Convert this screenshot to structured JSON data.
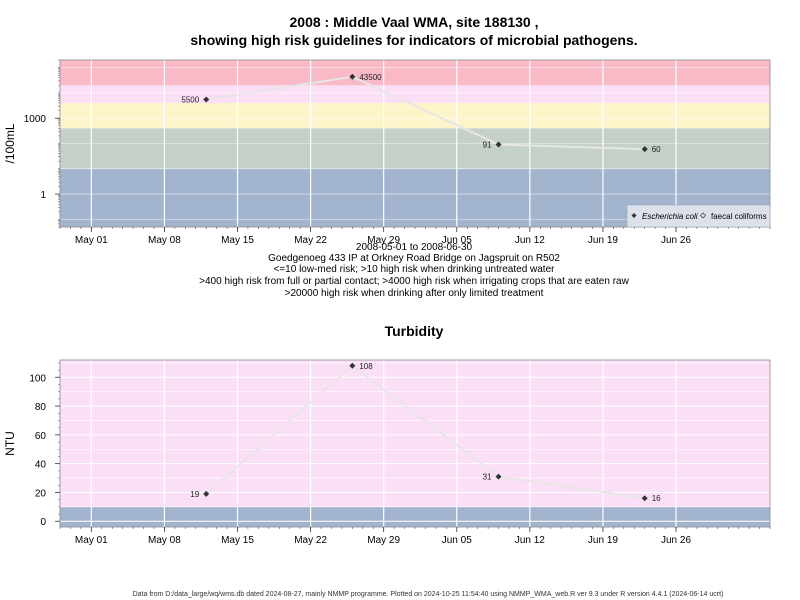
{
  "footer": "Data from D:/data_large/wq/wms.db dated 2024-08-27, mainly NMMP programme. Plotted on 2024-10-25 11:54:40 using NMMP_WMA_web.R ver 9.3 under R version 4.4.1 (2024-06-14 ucrt)",
  "x_ticks": [
    "May 01",
    "May 08",
    "May 15",
    "May 22",
    "May 29",
    "Jun 05",
    "Jun 12",
    "Jun 19",
    "Jun 26"
  ],
  "chart_data": [
    {
      "type": "line",
      "title_line1": "2008 : Middle Vaal WMA, site 188130 ,",
      "title_line2": "showing high risk guidelines for indicators of microbial pathogens.",
      "xlabel": "2008-05-01 to 2008-06-30",
      "site_desc": "Goedgenoeg 433 IP at Orkney Road Bridge on Jagspruit on R502",
      "guideline_lines": [
        "<=10 low-med risk; >10 high risk when drinking untreated water",
        ">400 high risk from full or partial contact; >4000 high risk when irrigating crops that are eaten raw",
        ">20000 high risk when drinking after only limited treatment"
      ],
      "ylabel": "/100mL",
      "y_scale": "log",
      "y_ticks": [
        "1",
        "1000"
      ],
      "x_range": [
        "2008-04-28",
        "2008-07-05"
      ],
      "y_range": [
        0.05,
        200000
      ],
      "bands": [
        {
          "from": 0.05,
          "to": 10,
          "color": "#a3b4cf"
        },
        {
          "from": 10,
          "to": 400,
          "color": "#c4d0c8"
        },
        {
          "from": 400,
          "to": 4000,
          "color": "#fdf5c9"
        },
        {
          "from": 4000,
          "to": 20000,
          "color": "#fbdff7"
        },
        {
          "from": 20000,
          "to": 200000,
          "color": "#f9b9c7"
        }
      ],
      "series": [
        {
          "name": "Escherichia coli",
          "x": [
            "2008-05-12",
            "2008-05-26",
            "2008-06-09",
            "2008-06-23"
          ],
          "values": [
            5500,
            43500,
            91,
            60
          ],
          "labels": [
            "5500",
            "43500",
            "91",
            "60"
          ]
        }
      ],
      "legend": {
        "position": "bottom-right",
        "items": [
          "Escherichia coli",
          "faecal coliforms"
        ]
      }
    },
    {
      "type": "line",
      "title": "Turbidity",
      "ylabel": "NTU",
      "y_scale": "linear",
      "y_ticks": [
        "0",
        "20",
        "40",
        "60",
        "80",
        "100"
      ],
      "x_range": [
        "2008-04-28",
        "2008-07-05"
      ],
      "y_range": [
        -4,
        112
      ],
      "bands": [
        {
          "from": -4,
          "to": 10,
          "color": "#a3b4cf"
        },
        {
          "from": 10,
          "to": 112,
          "color": "#fbdff7"
        }
      ],
      "series": [
        {
          "x": [
            "2008-05-12",
            "2008-05-26",
            "2008-06-09",
            "2008-06-23"
          ],
          "values": [
            19,
            108,
            31,
            16
          ],
          "labels": [
            "19",
            "108",
            "31",
            "16"
          ]
        }
      ]
    }
  ]
}
